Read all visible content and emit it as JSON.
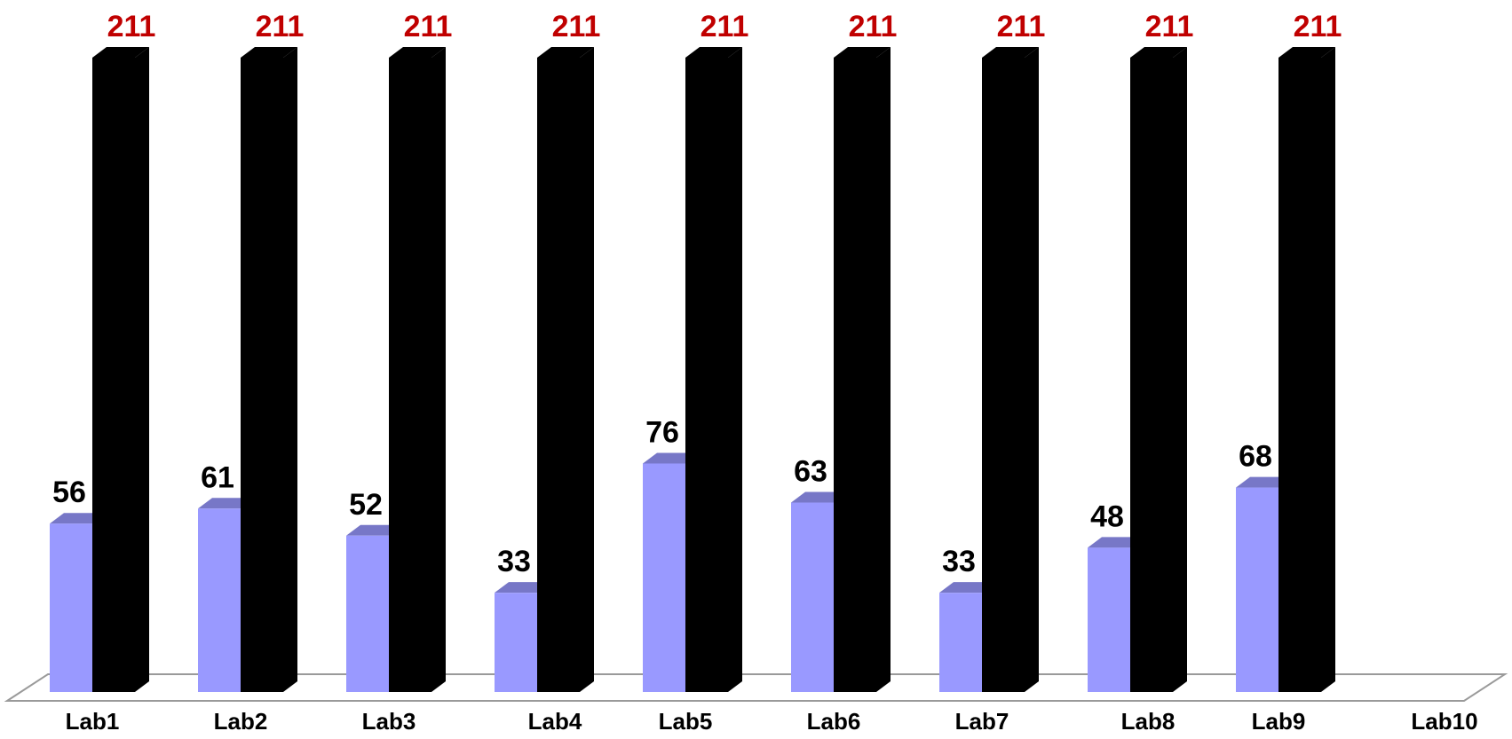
{
  "chart_data": {
    "type": "bar",
    "categories": [
      "Lab1",
      "Lab2",
      "Lab3",
      "Lab4",
      "Lab5",
      "Lab6",
      "Lab7",
      "Lab8",
      "Lab9",
      "Lab10"
    ],
    "series": [
      {
        "values": [
          56,
          61,
          52,
          33,
          76,
          63,
          33,
          48,
          68,
          null
        ],
        "color": "#9999ff",
        "label_color": "#000000"
      },
      {
        "values": [
          211,
          211,
          211,
          211,
          211,
          211,
          211,
          211,
          211,
          null
        ],
        "color": "#000000",
        "label_color": "#c00000"
      }
    ],
    "ylim": [
      0,
      211
    ],
    "grid": false,
    "style": "3d-columns",
    "legend": "none"
  }
}
